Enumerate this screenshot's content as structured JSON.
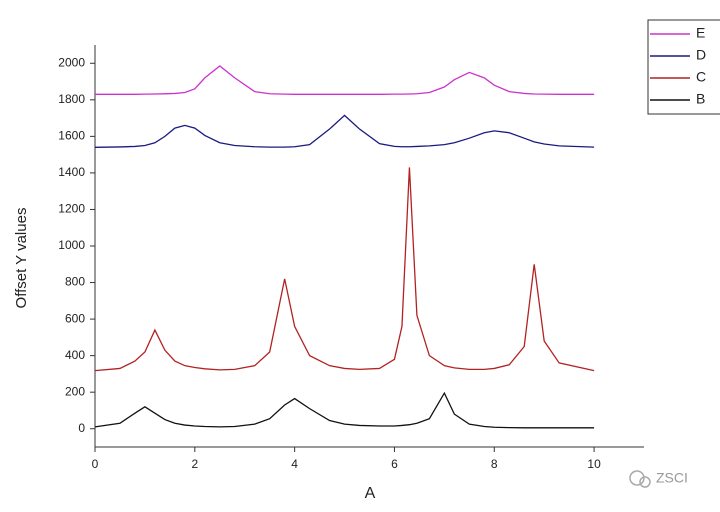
{
  "chart_data": {
    "type": "line",
    "x_label": "A",
    "y_label": "Offset Y values",
    "x": [
      0,
      0.5,
      0.8,
      1,
      1.2,
      1.4,
      1.6,
      1.8,
      2,
      2.2,
      2.5,
      2.8,
      3.2,
      3.5,
      3.8,
      4,
      4.3,
      4.7,
      5,
      5.3,
      5.7,
      6,
      6.15,
      6.3,
      6.45,
      6.7,
      7,
      7.2,
      7.5,
      7.8,
      8,
      8.3,
      8.6,
      8.8,
      9,
      9.3,
      10
    ],
    "series": [
      {
        "name": "E",
        "color": "#cc33cc",
        "values": [
          1830,
          1830,
          1830,
          1831,
          1832,
          1833,
          1835,
          1840,
          1860,
          1920,
          1985,
          1920,
          1845,
          1833,
          1831,
          1830,
          1830,
          1830,
          1830,
          1830,
          1830,
          1831,
          1831,
          1832,
          1833,
          1840,
          1870,
          1910,
          1950,
          1920,
          1880,
          1845,
          1835,
          1832,
          1831,
          1830,
          1830
        ]
      },
      {
        "name": "D",
        "color": "#1a1a80",
        "values": [
          1540,
          1542,
          1545,
          1550,
          1565,
          1600,
          1645,
          1660,
          1645,
          1605,
          1565,
          1550,
          1543,
          1541,
          1541,
          1543,
          1555,
          1640,
          1715,
          1640,
          1560,
          1545,
          1543,
          1543,
          1545,
          1548,
          1555,
          1565,
          1590,
          1620,
          1630,
          1620,
          1590,
          1570,
          1558,
          1548,
          1541
        ]
      },
      {
        "name": "C",
        "color": "#b22222",
        "values": [
          318,
          330,
          370,
          420,
          540,
          430,
          370,
          345,
          335,
          328,
          322,
          325,
          345,
          420,
          820,
          560,
          400,
          345,
          330,
          325,
          330,
          380,
          560,
          1430,
          620,
          400,
          345,
          333,
          325,
          325,
          330,
          350,
          450,
          900,
          480,
          360,
          318
        ]
      },
      {
        "name": "B",
        "color": "#111111",
        "values": [
          10,
          30,
          85,
          120,
          85,
          50,
          30,
          20,
          15,
          12,
          10,
          12,
          25,
          55,
          130,
          165,
          110,
          45,
          25,
          18,
          15,
          15,
          18,
          22,
          30,
          55,
          195,
          80,
          25,
          12,
          8,
          6,
          5,
          5,
          5,
          5,
          5
        ]
      }
    ],
    "xlim": [
      0,
      11
    ],
    "xticks": [
      0,
      2,
      4,
      6,
      8,
      10
    ],
    "ylim": [
      -100,
      2100
    ],
    "yticks": [
      0,
      200,
      400,
      600,
      800,
      1000,
      1200,
      1400,
      1600,
      1800,
      2000
    ],
    "grid": false,
    "legend": "top-right"
  },
  "watermark": "ZSCI"
}
